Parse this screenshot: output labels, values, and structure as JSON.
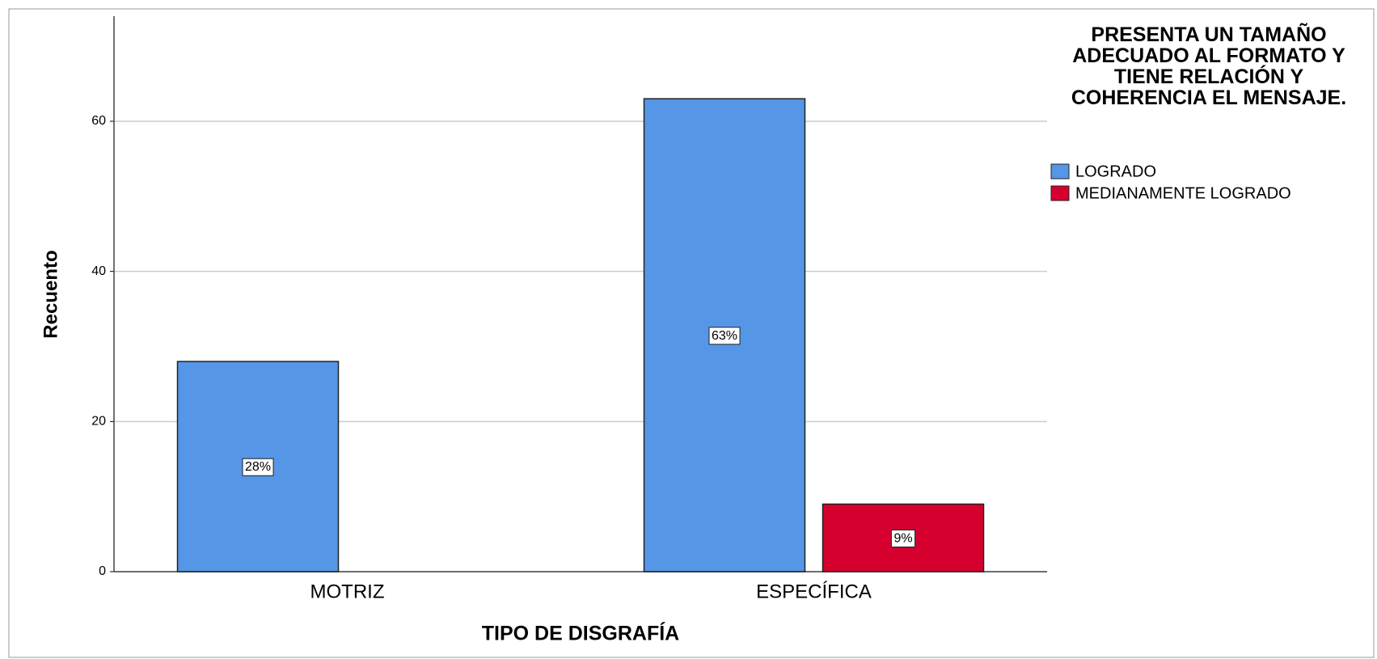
{
  "chart_data": {
    "type": "bar",
    "legend_title": "PRESENTA UN TAMAÑO ADECUADO AL FORMATO Y TIENE RELACIÓN Y COHERENCIA EL MENSAJE.",
    "x_label": "TIPO DE DISGRAFÍA",
    "y_label": "Recuento",
    "categories": [
      "MOTRIZ",
      "ESPECÍFICA"
    ],
    "series": [
      {
        "name": "LOGRADO",
        "color": "#5596e6",
        "values": [
          28,
          63
        ],
        "value_labels": [
          "28%",
          "63%"
        ]
      },
      {
        "name": "MEDIANAMENTE LOGRADO",
        "color": "#d6002f",
        "values": [
          null,
          9
        ],
        "value_labels": [
          null,
          "9%"
        ]
      }
    ],
    "ylim": [
      0,
      74
    ],
    "yticks": [
      0,
      20,
      40,
      60
    ],
    "grid": true,
    "legend": "right"
  }
}
